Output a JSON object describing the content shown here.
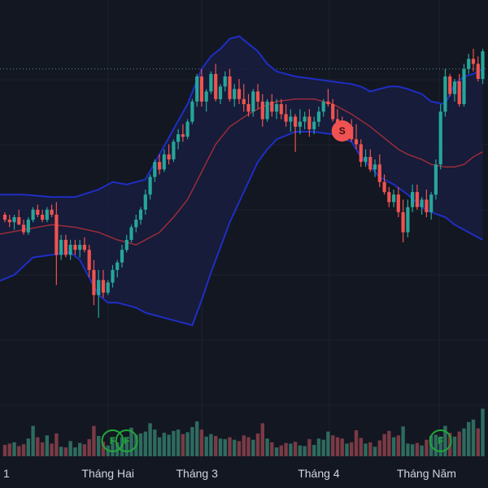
{
  "colors": {
    "background": "#131722",
    "grid": "#1e222d",
    "up": "#26a69a",
    "down": "#ef5350",
    "volume_up": "#2e6b5f",
    "volume_down": "#7a3a44",
    "band": "#1f2ec4",
    "band_fill": "#171d3d",
    "basis": "#9b2c3a",
    "price_line": "#5a8a9a",
    "event_marker": "#22a63a",
    "sell_marker": "#f05252",
    "axis_text": "#d1d4dc"
  },
  "chart_data": {
    "type": "candlestick",
    "xlabel": "",
    "ylabel": "",
    "grid": true,
    "indicators": [
      "bollinger-bands",
      "volume"
    ],
    "time_labels": [
      {
        "label": "1",
        "index": -1
      },
      {
        "label": "Tháng Hai",
        "index": 22
      },
      {
        "label": "Tháng 3",
        "index": 41
      },
      {
        "label": "Tháng 4",
        "index": 67
      },
      {
        "label": "Tháng Năm",
        "index": 90
      }
    ],
    "ylim": [
      80,
      152
    ],
    "volume_max": 100,
    "price_line": 148,
    "candles": [
      [
        119,
        119.5,
        117.5,
        118
      ],
      [
        118,
        119,
        116.5,
        117.5
      ],
      [
        117.5,
        119,
        116,
        118.5
      ],
      [
        118.5,
        120,
        117,
        117
      ],
      [
        117,
        118,
        115,
        115.5
      ],
      [
        115.5,
        118.5,
        115,
        118
      ],
      [
        118,
        120.5,
        117.5,
        120
      ],
      [
        120,
        121,
        118.5,
        119
      ],
      [
        119,
        120,
        117.5,
        118
      ],
      [
        118,
        120.5,
        117.5,
        120
      ],
      [
        120,
        121,
        118.5,
        119
      ],
      [
        119,
        121.5,
        105,
        111
      ],
      [
        111,
        115,
        110,
        114
      ],
      [
        114,
        115,
        110.5,
        111
      ],
      [
        111,
        114,
        110,
        113
      ],
      [
        113,
        114,
        111,
        112
      ],
      [
        112,
        114,
        110.5,
        113
      ],
      [
        113,
        114.5,
        111.5,
        112
      ],
      [
        112,
        113,
        106.5,
        108
      ],
      [
        108,
        110,
        101,
        103
      ],
      [
        103,
        108,
        98.5,
        106
      ],
      [
        106,
        108,
        102.5,
        103.5
      ],
      [
        103.5,
        106,
        103,
        105.5
      ],
      [
        105.5,
        109,
        104.5,
        108
      ],
      [
        108,
        110,
        106.5,
        109.5
      ],
      [
        109.5,
        113,
        108.5,
        112
      ],
      [
        112,
        115,
        111.5,
        114
      ],
      [
        114,
        117,
        113.5,
        116.5
      ],
      [
        116.5,
        119,
        115.5,
        118
      ],
      [
        118,
        120.5,
        117,
        120
      ],
      [
        120,
        124,
        119,
        123
      ],
      [
        123,
        127,
        122,
        126.5
      ],
      [
        126.5,
        130,
        125.5,
        129.5
      ],
      [
        129.5,
        131,
        127,
        128
      ],
      [
        128,
        132,
        127.5,
        131
      ],
      [
        131,
        133,
        129,
        130
      ],
      [
        130,
        134,
        129.5,
        133.5
      ],
      [
        133.5,
        136,
        132,
        135
      ],
      [
        135,
        137,
        133.5,
        134.5
      ],
      [
        134.5,
        138,
        134,
        137.5
      ],
      [
        137.5,
        142,
        137,
        141.5
      ],
      [
        141.5,
        147,
        140.5,
        146.5
      ],
      [
        146.5,
        148,
        140.5,
        141.5
      ],
      [
        141.5,
        144,
        139.5,
        143.5
      ],
      [
        143.5,
        147.5,
        143,
        147
      ],
      [
        147,
        149,
        141.5,
        142
      ],
      [
        142,
        145,
        141,
        144.5
      ],
      [
        144.5,
        147.5,
        143.5,
        146.5
      ],
      [
        146.5,
        148,
        141.5,
        142
      ],
      [
        142,
        145,
        140.5,
        144
      ],
      [
        144,
        146,
        141,
        142
      ],
      [
        142,
        145,
        139.5,
        141
      ],
      [
        141,
        143,
        138.5,
        139.5
      ],
      [
        139.5,
        144,
        138.5,
        143.5
      ],
      [
        143.5,
        145,
        140,
        141.5
      ],
      [
        141.5,
        143,
        136.5,
        138
      ],
      [
        138,
        142,
        137.5,
        141.5
      ],
      [
        141.5,
        143,
        138.5,
        139.5
      ],
      [
        139.5,
        142,
        138,
        141
      ],
      [
        141,
        142,
        138,
        139
      ],
      [
        139,
        141,
        136.5,
        137.5
      ],
      [
        137.5,
        140,
        135.5,
        138.5
      ],
      [
        138.5,
        139,
        131.5,
        136.5
      ],
      [
        136.5,
        140,
        135,
        137.5
      ],
      [
        137.5,
        139.5,
        136,
        138.5
      ],
      [
        138.5,
        140,
        134.5,
        136
      ],
      [
        136,
        138.5,
        135,
        137.5
      ],
      [
        137.5,
        140.5,
        136.5,
        139.5
      ],
      [
        139.5,
        142,
        138.5,
        141.5
      ],
      [
        141.5,
        144,
        140.5,
        141
      ],
      [
        141,
        142,
        137.5,
        138
      ],
      [
        138,
        140,
        135.5,
        136
      ],
      [
        136,
        138.5,
        133.5,
        134.5
      ],
      [
        134.5,
        137,
        134,
        136.5
      ],
      [
        136.5,
        138,
        133.5,
        134
      ],
      [
        134,
        137,
        132,
        133
      ],
      [
        133,
        134,
        128.5,
        129.5
      ],
      [
        129.5,
        132,
        128.5,
        130.5
      ],
      [
        130.5,
        132,
        127.5,
        128
      ],
      [
        128,
        130,
        126.5,
        129
      ],
      [
        129,
        131,
        124.5,
        125.5
      ],
      [
        125.5,
        127,
        123,
        123.5
      ],
      [
        123.5,
        124.5,
        120.5,
        121.5
      ],
      [
        121.5,
        124,
        120.5,
        123
      ],
      [
        123,
        124.5,
        118.5,
        119.5
      ],
      [
        119.5,
        122,
        113.5,
        115.5
      ],
      [
        115.5,
        122,
        114.5,
        120.5
      ],
      [
        120.5,
        125,
        119.5,
        123.5
      ],
      [
        123.5,
        125,
        120,
        120.5
      ],
      [
        120.5,
        122.5,
        119,
        122
      ],
      [
        122,
        124,
        118.5,
        119.5
      ],
      [
        119.5,
        123.5,
        118,
        123
      ],
      [
        123,
        130,
        122,
        129
      ],
      [
        129,
        141,
        128,
        139.5
      ],
      [
        139.5,
        148,
        138.5,
        146.5
      ],
      [
        146.5,
        147,
        142.5,
        143
      ],
      [
        143,
        146,
        141.5,
        145.5
      ],
      [
        145.5,
        147,
        140.5,
        141
      ],
      [
        141,
        149,
        140.5,
        148
      ],
      [
        148,
        151,
        147,
        150
      ],
      [
        150,
        152,
        147.5,
        149
      ],
      [
        149,
        150.5,
        145.5,
        146
      ],
      [
        146,
        152,
        145,
        151.5
      ]
    ],
    "volume": [
      [
        18,
        "down"
      ],
      [
        20,
        "down"
      ],
      [
        22,
        "up"
      ],
      [
        16,
        "down"
      ],
      [
        19,
        "down"
      ],
      [
        28,
        "up"
      ],
      [
        48,
        "up"
      ],
      [
        30,
        "down"
      ],
      [
        22,
        "down"
      ],
      [
        33,
        "up"
      ],
      [
        20,
        "down"
      ],
      [
        36,
        "down"
      ],
      [
        15,
        "up"
      ],
      [
        14,
        "down"
      ],
      [
        24,
        "up"
      ],
      [
        14,
        "up"
      ],
      [
        21,
        "up"
      ],
      [
        19,
        "down"
      ],
      [
        27,
        "down"
      ],
      [
        48,
        "down"
      ],
      [
        32,
        "up"
      ],
      [
        23,
        "down"
      ],
      [
        17,
        "up"
      ],
      [
        28,
        "up"
      ],
      [
        22,
        "up"
      ],
      [
        30,
        "up"
      ],
      [
        28,
        "up"
      ],
      [
        45,
        "up"
      ],
      [
        34,
        "up"
      ],
      [
        36,
        "up"
      ],
      [
        39,
        "up"
      ],
      [
        52,
        "up"
      ],
      [
        42,
        "up"
      ],
      [
        30,
        "up"
      ],
      [
        37,
        "up"
      ],
      [
        34,
        "up"
      ],
      [
        40,
        "up"
      ],
      [
        42,
        "up"
      ],
      [
        35,
        "down"
      ],
      [
        38,
        "up"
      ],
      [
        46,
        "up"
      ],
      [
        55,
        "up"
      ],
      [
        42,
        "down"
      ],
      [
        31,
        "up"
      ],
      [
        35,
        "up"
      ],
      [
        32,
        "down"
      ],
      [
        28,
        "up"
      ],
      [
        27,
        "up"
      ],
      [
        30,
        "down"
      ],
      [
        26,
        "up"
      ],
      [
        24,
        "down"
      ],
      [
        33,
        "down"
      ],
      [
        30,
        "down"
      ],
      [
        26,
        "up"
      ],
      [
        36,
        "down"
      ],
      [
        52,
        "down"
      ],
      [
        28,
        "up"
      ],
      [
        22,
        "down"
      ],
      [
        14,
        "up"
      ],
      [
        17,
        "down"
      ],
      [
        21,
        "down"
      ],
      [
        20,
        "up"
      ],
      [
        23,
        "down"
      ],
      [
        17,
        "up"
      ],
      [
        16,
        "up"
      ],
      [
        27,
        "down"
      ],
      [
        18,
        "up"
      ],
      [
        28,
        "up"
      ],
      [
        26,
        "up"
      ],
      [
        39,
        "up"
      ],
      [
        33,
        "down"
      ],
      [
        30,
        "down"
      ],
      [
        28,
        "down"
      ],
      [
        20,
        "up"
      ],
      [
        22,
        "down"
      ],
      [
        41,
        "down"
      ],
      [
        29,
        "down"
      ],
      [
        20,
        "up"
      ],
      [
        22,
        "down"
      ],
      [
        15,
        "up"
      ],
      [
        25,
        "down"
      ],
      [
        35,
        "down"
      ],
      [
        40,
        "down"
      ],
      [
        30,
        "up"
      ],
      [
        33,
        "down"
      ],
      [
        47,
        "up"
      ],
      [
        20,
        "up"
      ],
      [
        19,
        "up"
      ],
      [
        21,
        "down"
      ],
      [
        17,
        "up"
      ],
      [
        26,
        "down"
      ],
      [
        32,
        "up"
      ],
      [
        34,
        "up"
      ],
      [
        31,
        "up"
      ],
      [
        48,
        "up"
      ],
      [
        37,
        "down"
      ],
      [
        31,
        "up"
      ],
      [
        39,
        "down"
      ],
      [
        44,
        "up"
      ],
      [
        54,
        "up"
      ],
      [
        58,
        "up"
      ],
      [
        44,
        "down"
      ],
      [
        75,
        "up"
      ]
    ],
    "bollinger": {
      "upper": [
        [
          -2,
          123
        ],
        [
          4,
          123
        ],
        [
          10,
          122.5
        ],
        [
          15,
          122.5
        ],
        [
          20,
          124
        ],
        [
          23,
          125.5
        ],
        [
          26,
          125
        ],
        [
          30,
          126
        ],
        [
          33,
          131
        ],
        [
          36,
          136
        ],
        [
          39,
          141
        ],
        [
          42,
          148
        ],
        [
          44,
          150.5
        ],
        [
          46,
          152
        ],
        [
          48,
          154
        ],
        [
          50,
          154.5
        ],
        [
          52,
          153
        ],
        [
          54,
          151.5
        ],
        [
          56,
          149
        ],
        [
          58,
          147.5
        ],
        [
          62,
          146.5
        ],
        [
          66,
          146
        ],
        [
          70,
          145.5
        ],
        [
          74,
          145
        ],
        [
          76,
          144.5
        ],
        [
          78,
          143.5
        ],
        [
          80,
          144
        ],
        [
          82,
          144.5
        ],
        [
          84,
          144.5
        ],
        [
          86,
          144
        ],
        [
          89,
          143
        ],
        [
          91,
          141.5
        ],
        [
          94,
          141
        ],
        [
          96,
          145
        ],
        [
          98,
          146.5
        ],
        [
          100,
          147
        ],
        [
          102,
          148
        ]
      ],
      "lower": [
        [
          -2,
          105.5
        ],
        [
          2,
          107
        ],
        [
          6,
          110.5
        ],
        [
          10,
          111
        ],
        [
          14,
          111.5
        ],
        [
          16,
          110
        ],
        [
          20,
          103
        ],
        [
          22,
          101.5
        ],
        [
          24,
          101.5
        ],
        [
          26,
          101
        ],
        [
          28,
          100.5
        ],
        [
          30,
          99.5
        ],
        [
          32,
          99
        ],
        [
          34,
          98.5
        ],
        [
          36,
          98
        ],
        [
          38,
          97.5
        ],
        [
          40,
          97
        ],
        [
          42,
          102
        ],
        [
          44,
          107.5
        ],
        [
          46,
          112.5
        ],
        [
          48,
          117.5
        ],
        [
          50,
          121.5
        ],
        [
          52,
          125.5
        ],
        [
          54,
          129.5
        ],
        [
          56,
          132
        ],
        [
          58,
          134
        ],
        [
          62,
          135.5
        ],
        [
          66,
          135.5
        ],
        [
          70,
          135
        ],
        [
          74,
          133.5
        ],
        [
          76,
          130.5
        ],
        [
          80,
          126.5
        ],
        [
          83,
          125
        ],
        [
          86,
          123
        ],
        [
          89,
          120.5
        ],
        [
          91,
          119.5
        ],
        [
          94,
          118.5
        ],
        [
          96,
          117
        ],
        [
          98,
          116
        ],
        [
          100,
          115
        ],
        [
          102,
          114
        ]
      ],
      "basis": [
        [
          -2,
          115
        ],
        [
          4,
          116
        ],
        [
          10,
          117
        ],
        [
          15,
          116.5
        ],
        [
          20,
          115.5
        ],
        [
          24,
          114
        ],
        [
          28,
          113
        ],
        [
          30,
          114
        ],
        [
          33,
          115.5
        ],
        [
          36,
          118.5
        ],
        [
          39,
          122
        ],
        [
          42,
          127.5
        ],
        [
          45,
          133
        ],
        [
          48,
          136.5
        ],
        [
          52,
          139
        ],
        [
          55,
          140.5
        ],
        [
          58,
          141.5
        ],
        [
          62,
          142
        ],
        [
          66,
          142
        ],
        [
          70,
          141
        ],
        [
          74,
          139
        ],
        [
          78,
          136.5
        ],
        [
          80,
          135
        ],
        [
          82,
          133.5
        ],
        [
          84,
          132
        ],
        [
          86,
          131
        ],
        [
          89,
          130
        ],
        [
          91,
          129
        ],
        [
          94,
          128.5
        ],
        [
          96,
          128.5
        ],
        [
          98,
          129
        ],
        [
          100,
          130.5
        ],
        [
          102,
          131.5
        ]
      ]
    },
    "markers": [
      {
        "type": "event",
        "label": "F",
        "index": 23
      },
      {
        "type": "event",
        "label": "F",
        "index": 26
      },
      {
        "type": "event",
        "label": "F",
        "index": 93
      },
      {
        "type": "sell",
        "label": "S",
        "index": 72
      }
    ]
  }
}
